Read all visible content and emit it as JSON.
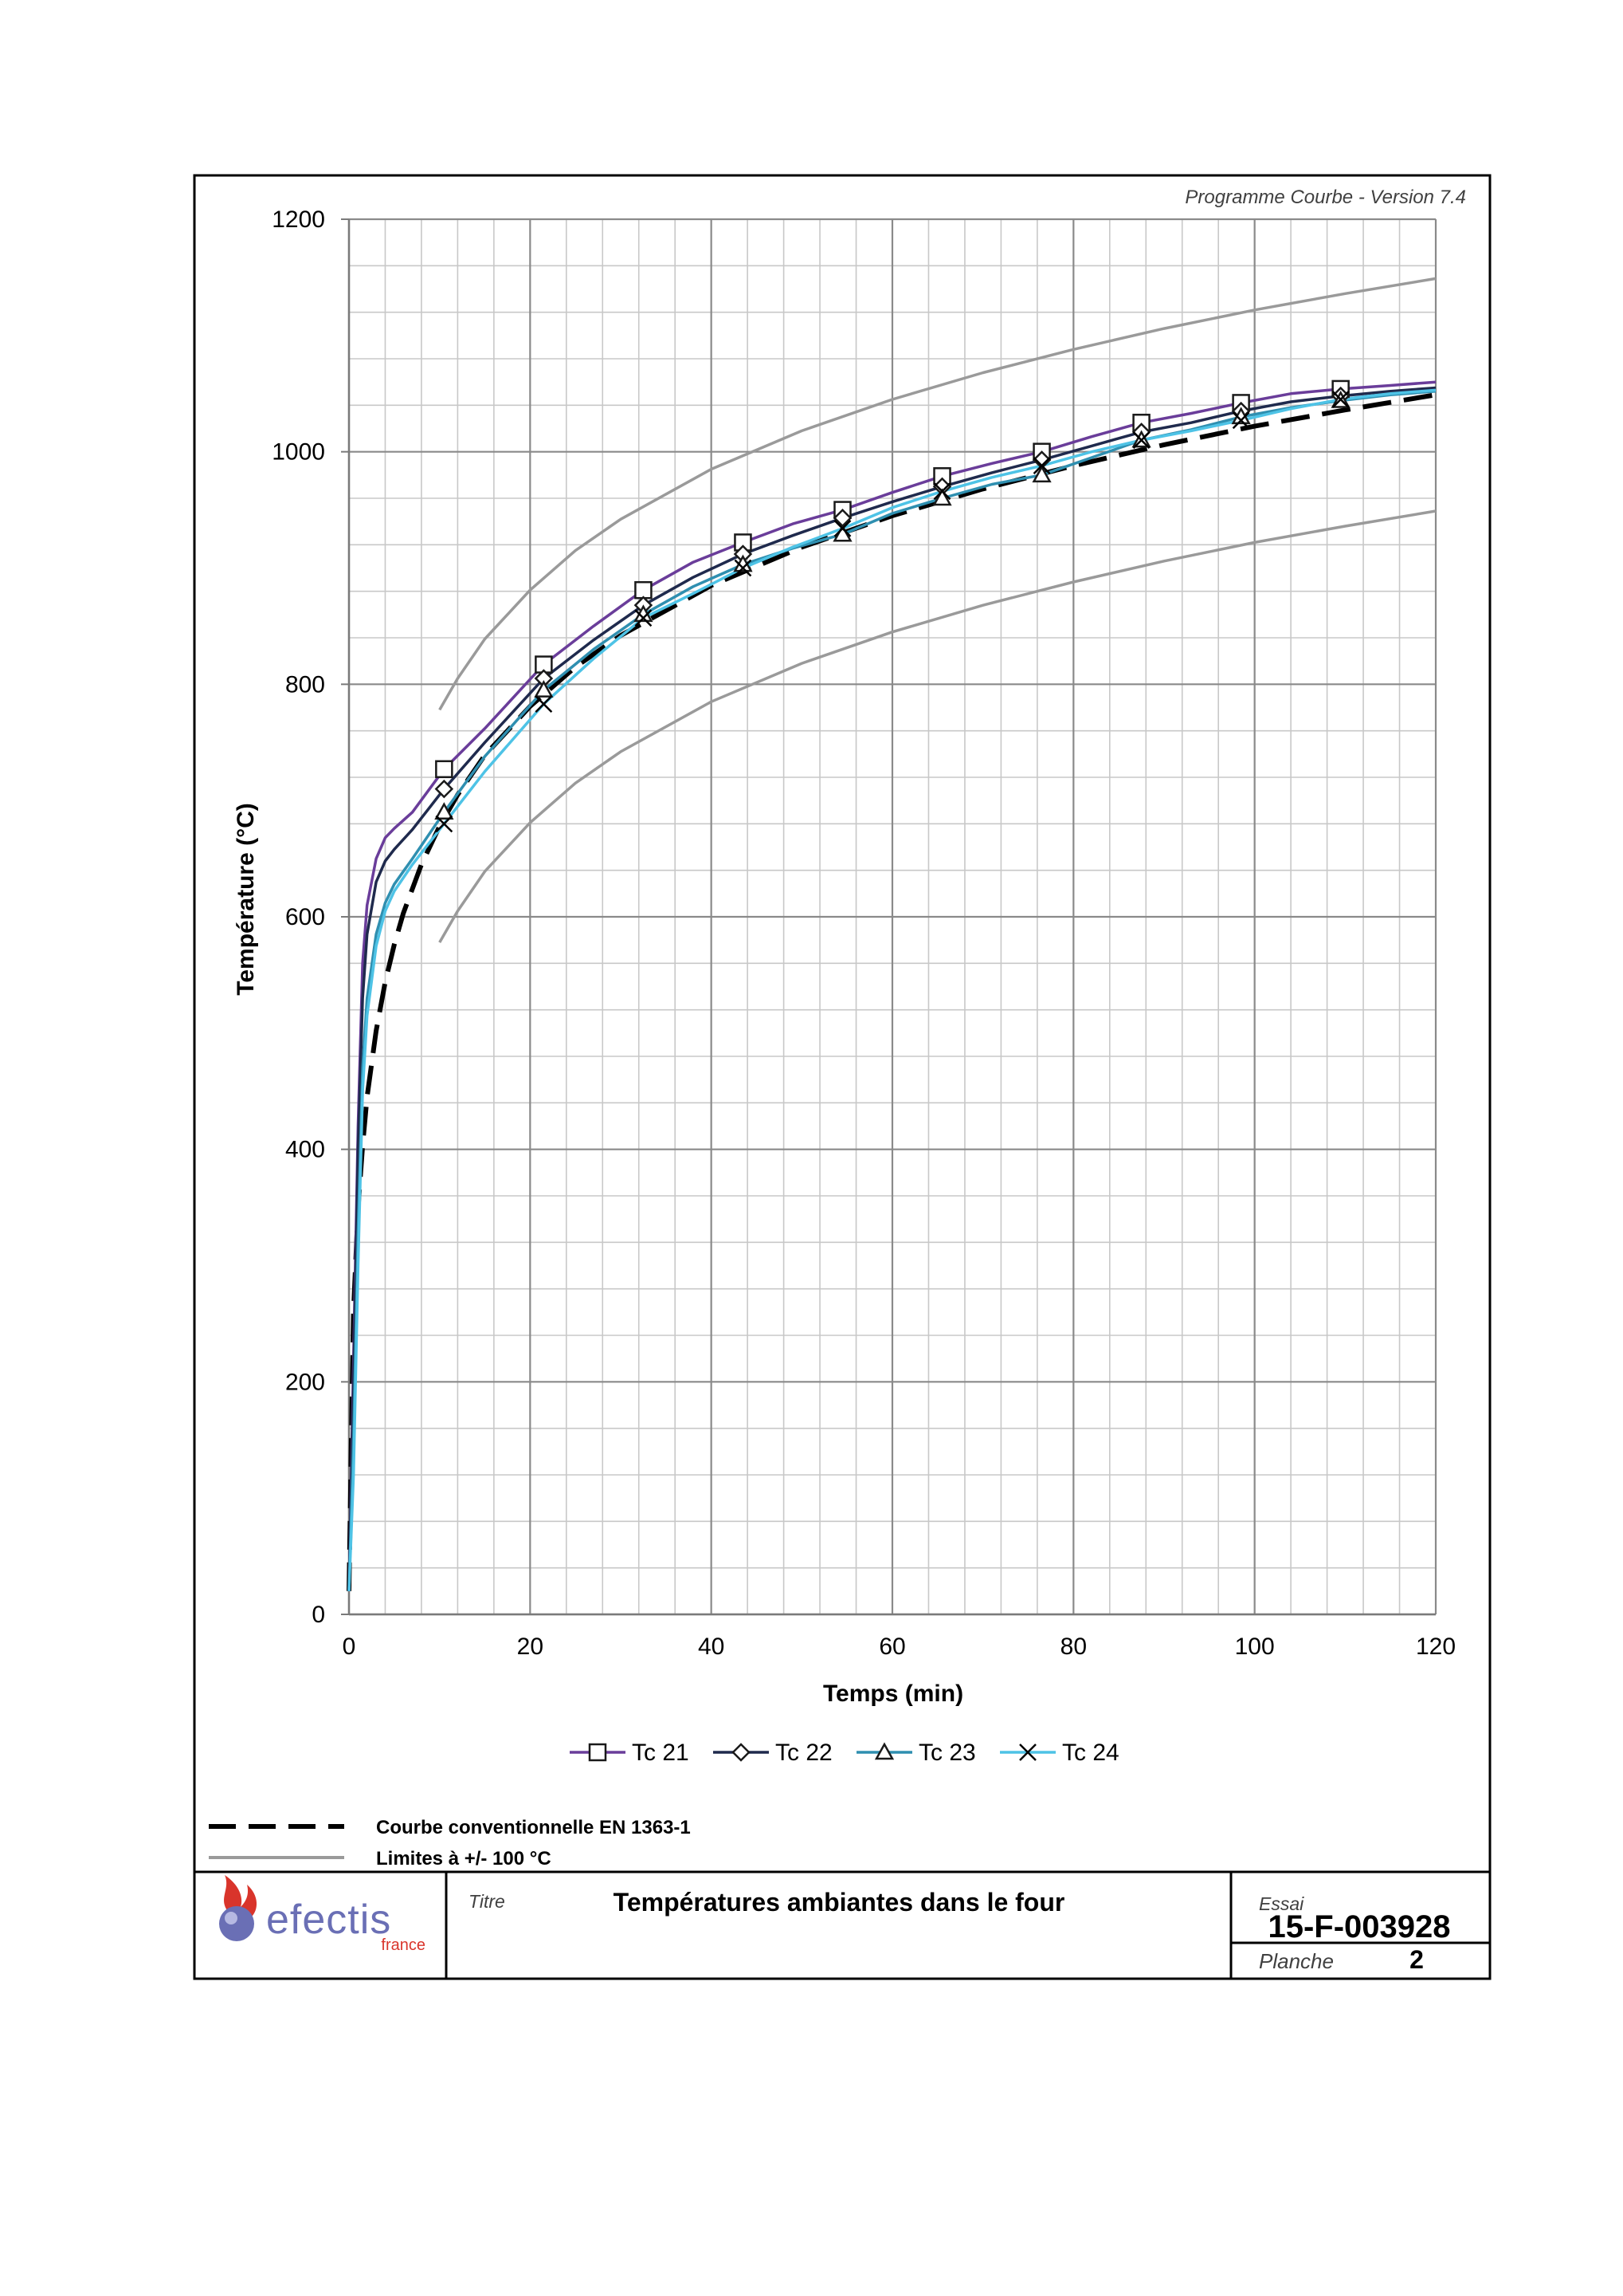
{
  "version_label": "Programme Courbe  - Version 7.4",
  "title_label": "Titre",
  "title": "Températures ambiantes dans le four",
  "essai_label": "Essai",
  "essai_value": "15-F-003928",
  "planche_label": "Planche",
  "planche_value": "2",
  "logo": {
    "text": "efectis",
    "subtext": "france",
    "icon": "flame-sphere-icon",
    "flame_color": "#d9342b",
    "sphere_color": "#6a6fb5"
  },
  "extra_legend": [
    {
      "label": "Courbe conventionnelle EN 1363-1",
      "color": "#000000",
      "style": "dashed"
    },
    {
      "label": "Limites à +/- 100 °C",
      "color": "#9a9a9a",
      "style": "solid"
    }
  ],
  "chart_data": {
    "type": "line",
    "xlabel": "Temps (min)",
    "ylabel": "Température (°C)",
    "xlim": [
      0,
      120
    ],
    "ylim": [
      0,
      1200
    ],
    "xticks": [
      0,
      20,
      40,
      60,
      80,
      100,
      120
    ],
    "yticks": [
      0,
      200,
      400,
      600,
      800,
      1000,
      1200
    ],
    "grid": true,
    "legend_position": "bottom",
    "series": [
      {
        "name": "Tc 21",
        "color": "#6a3d9a",
        "marker": "square",
        "x": [
          0,
          0.5,
          1,
          1.5,
          2,
          3,
          4,
          5,
          7,
          10.5,
          15,
          21.5,
          27,
          32.5,
          38,
          43.5,
          49,
          54.5,
          60,
          65.5,
          71,
          76.5,
          82,
          87.5,
          93,
          98.5,
          104,
          109.5,
          115,
          120
        ],
        "y": [
          20,
          220,
          420,
          560,
          610,
          650,
          668,
          676,
          690,
          727,
          762,
          817,
          850,
          881,
          905,
          922,
          938,
          950,
          965,
          979,
          990,
          1000,
          1013,
          1025,
          1033,
          1042,
          1050,
          1054,
          1057,
          1060
        ]
      },
      {
        "name": "Tc 22",
        "color": "#1f2a4d",
        "marker": "diamond",
        "x": [
          0,
          0.5,
          1,
          1.5,
          2,
          3,
          4,
          5,
          7,
          10.5,
          15,
          21.5,
          27,
          32.5,
          38,
          43.5,
          49,
          54.5,
          60,
          65.5,
          71,
          76.5,
          82,
          87.5,
          93,
          98.5,
          104,
          109.5,
          115,
          120
        ],
        "y": [
          20,
          200,
          400,
          530,
          585,
          630,
          648,
          658,
          675,
          710,
          750,
          805,
          838,
          868,
          892,
          912,
          928,
          943,
          957,
          970,
          982,
          993,
          1005,
          1017,
          1025,
          1035,
          1043,
          1048,
          1052,
          1055
        ]
      },
      {
        "name": "Tc 23",
        "color": "#2f8fb0",
        "marker": "triangle",
        "x": [
          0,
          0.5,
          1,
          1.5,
          2,
          3,
          4,
          5,
          7,
          10.5,
          15,
          21.5,
          27,
          32.5,
          38,
          43.5,
          49,
          54.5,
          60,
          65.5,
          71,
          76.5,
          82,
          87.5,
          93,
          98.5,
          104,
          109.5,
          115,
          120
        ],
        "y": [
          20,
          150,
          330,
          470,
          530,
          585,
          612,
          628,
          650,
          690,
          738,
          795,
          830,
          860,
          884,
          903,
          917,
          929,
          947,
          960,
          972,
          980,
          995,
          1010,
          1019,
          1030,
          1038,
          1044,
          1049,
          1052
        ]
      },
      {
        "name": "Tc 24",
        "color": "#4ec3e6",
        "marker": "x",
        "x": [
          0,
          0.5,
          1,
          1.5,
          2,
          3,
          4,
          5,
          7,
          10.5,
          15,
          21.5,
          27,
          32.5,
          38,
          43.5,
          49,
          54.5,
          60,
          65.5,
          71,
          76.5,
          82,
          87.5,
          93,
          98.5,
          104,
          109.5,
          115,
          120
        ],
        "y": [
          20,
          120,
          300,
          450,
          515,
          575,
          605,
          622,
          645,
          680,
          725,
          783,
          822,
          857,
          878,
          900,
          918,
          934,
          952,
          966,
          978,
          988,
          1000,
          1010,
          1018,
          1027,
          1037,
          1045,
          1050,
          1053
        ]
      }
    ],
    "reference_series": [
      {
        "name": "Courbe conventionnelle EN 1363-1",
        "color": "#000000",
        "style": "dashed",
        "x": [
          0,
          0.25,
          0.5,
          1,
          1.5,
          2,
          3,
          4,
          5,
          6,
          8,
          10,
          12,
          15,
          20,
          25,
          30,
          40,
          50,
          60,
          70,
          80,
          90,
          100,
          110,
          120
        ],
        "y": [
          20,
          141,
          261,
          349,
          403,
          445,
          502,
          544,
          576,
          603,
          645,
          678,
          705,
          739,
          781,
          815,
          842,
          885,
          918,
          945,
          968,
          988,
          1006,
          1022,
          1036,
          1049
        ]
      },
      {
        "name": "Limites à +/- 100 °C (haute)",
        "color": "#9a9a9a",
        "style": "solid",
        "x": [
          10,
          12,
          15,
          20,
          25,
          30,
          40,
          50,
          60,
          70,
          80,
          90,
          100,
          110,
          120
        ],
        "y": [
          778,
          805,
          839,
          881,
          915,
          942,
          985,
          1018,
          1045,
          1068,
          1088,
          1106,
          1122,
          1136,
          1149
        ]
      },
      {
        "name": "Limites à +/- 100 °C (basse)",
        "color": "#9a9a9a",
        "style": "solid",
        "x": [
          10,
          12,
          15,
          20,
          25,
          30,
          40,
          50,
          60,
          70,
          80,
          90,
          100,
          110,
          120
        ],
        "y": [
          578,
          605,
          639,
          681,
          715,
          742,
          785,
          818,
          845,
          868,
          888,
          906,
          922,
          936,
          949
        ]
      }
    ]
  }
}
